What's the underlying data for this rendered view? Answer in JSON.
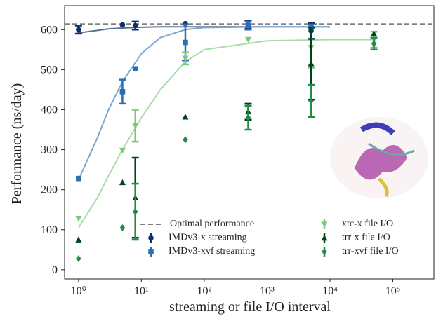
{
  "chart_data": {
    "type": "scatter",
    "x_label": "streaming or file I/O interval",
    "y_label": "Performance (ns/day)",
    "xscale": "log",
    "xlim": [
      0.6,
      450000
    ],
    "ylim": [
      -23,
      660
    ],
    "xticks": [
      {
        "value": 1,
        "label": "10⁰"
      },
      {
        "value": 10,
        "label": "10¹"
      },
      {
        "value": 100,
        "label": "10²"
      },
      {
        "value": 1000,
        "label": "10³"
      },
      {
        "value": 10000,
        "label": "10⁴"
      },
      {
        "value": 100000,
        "label": "10⁵"
      }
    ],
    "yticks": [
      0,
      100,
      200,
      300,
      400,
      500,
      600
    ],
    "reference": {
      "name": "Optimal performance",
      "value": 614,
      "color": "#808080"
    },
    "series": [
      {
        "name": "IMDv3-x streaming",
        "color": "#0d2f6b",
        "marker": "circle",
        "x": [
          1,
          5,
          8,
          50,
          500,
          5000
        ],
        "values": [
          600,
          612,
          610,
          615,
          612,
          597
        ],
        "errors": [
          10,
          null,
          10,
          null,
          10,
          20
        ]
      },
      {
        "name": "IMDv3-xvf streaming",
        "color": "#2a6fb5",
        "marker": "square",
        "x": [
          1,
          5,
          8,
          50,
          500,
          5000
        ],
        "values": [
          228,
          445,
          502,
          568,
          610,
          608
        ],
        "errors": [
          null,
          30,
          null,
          45,
          10,
          null
        ]
      },
      {
        "name": "xtc-x file I/O",
        "color": "#7bc87b",
        "marker": "triangle-down",
        "x": [
          1,
          5,
          8,
          50,
          500,
          5000,
          50000
        ],
        "values": [
          128,
          298,
          360,
          528,
          575,
          555,
          575
        ],
        "errors": [
          null,
          null,
          40,
          15,
          null,
          50,
          20
        ]
      },
      {
        "name": "trr-x file I/O",
        "color": "#00441b",
        "marker": "triangle-up",
        "x": [
          1,
          5,
          8,
          50,
          500,
          5000,
          50000
        ],
        "values": [
          75,
          218,
          180,
          382,
          395,
          515,
          590
        ],
        "errors": [
          null,
          null,
          100,
          null,
          20,
          90,
          null
        ]
      },
      {
        "name": "trr-xvf file I/O",
        "color": "#238b45",
        "marker": "diamond",
        "x": [
          1,
          5,
          8,
          50,
          500,
          5000,
          50000
        ],
        "values": [
          28,
          105,
          145,
          325,
          380,
          422,
          565
        ],
        "errors": [
          null,
          null,
          70,
          null,
          30,
          40,
          15
        ]
      }
    ],
    "fits": [
      {
        "color": "#5a7390",
        "x": [
          1,
          2,
          3,
          5,
          10,
          20,
          50,
          100,
          1000,
          10000
        ],
        "values": [
          592,
          598,
          602,
          604,
          606,
          607,
          607,
          607,
          607,
          607
        ]
      },
      {
        "color": "#7aa8d2",
        "x": [
          1,
          2,
          3,
          5,
          10,
          20,
          50,
          100,
          1000,
          10000
        ],
        "values": [
          225,
          330,
          400,
          470,
          540,
          580,
          600,
          605,
          607,
          607
        ]
      },
      {
        "color": "#a8dca8",
        "x": [
          1,
          2,
          3,
          5,
          10,
          20,
          50,
          100,
          1000,
          10000,
          50000
        ],
        "values": [
          105,
          180,
          235,
          300,
          380,
          450,
          520,
          550,
          572,
          575,
          575
        ]
      }
    ]
  }
}
